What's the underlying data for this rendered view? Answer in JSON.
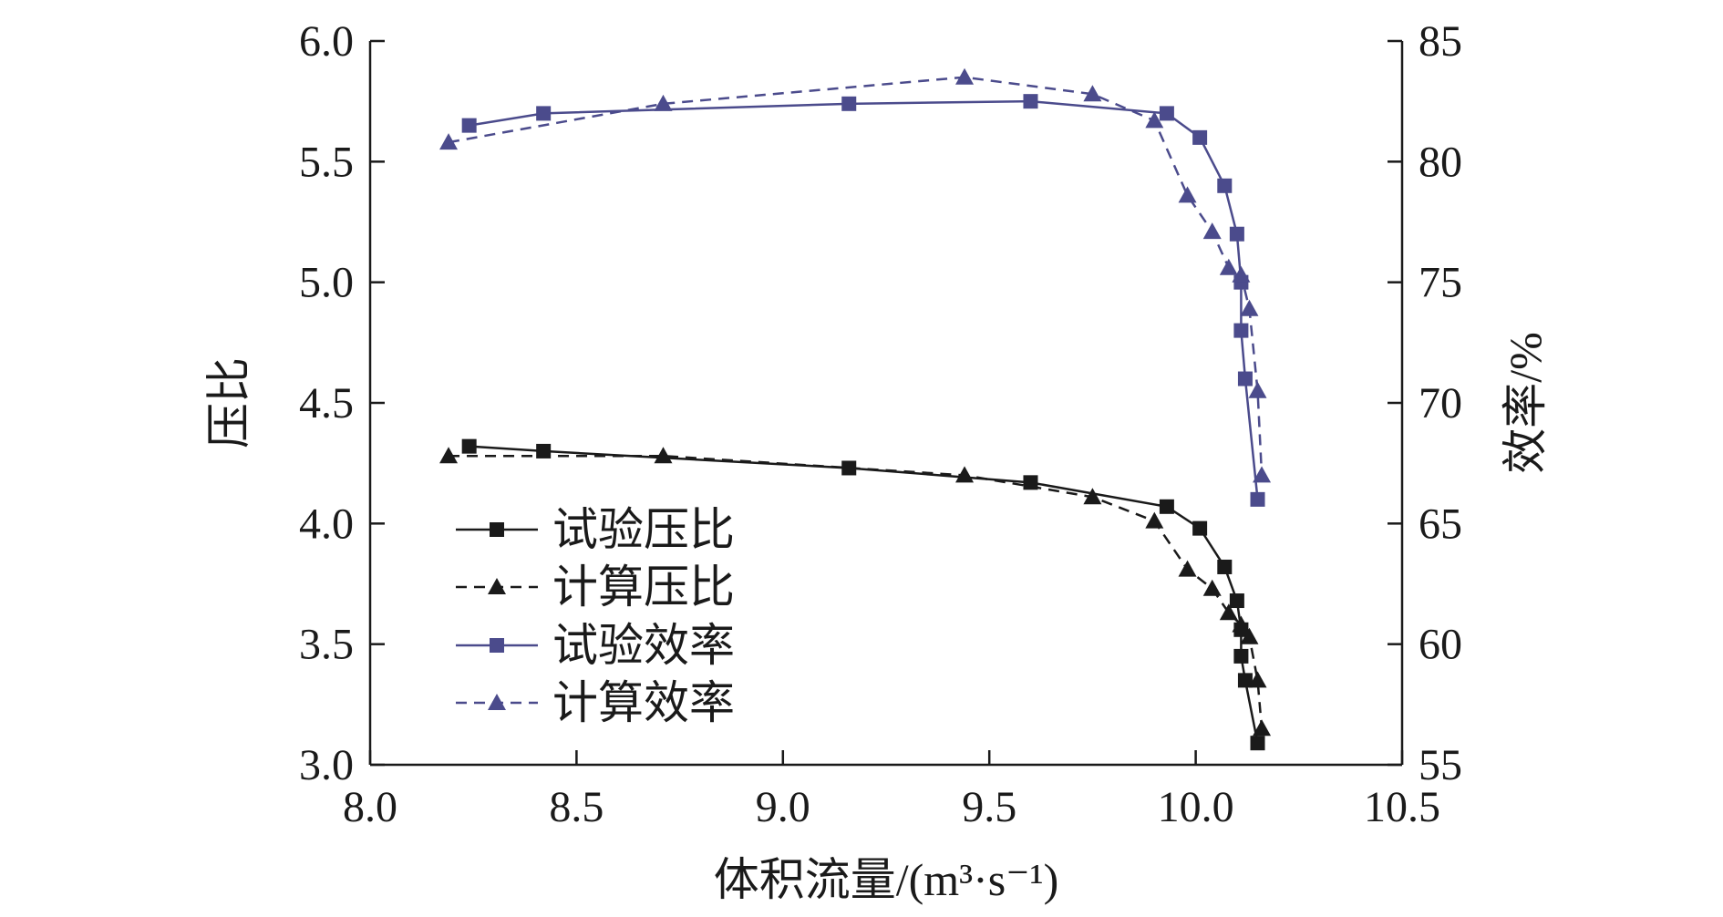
{
  "chart_data": {
    "type": "line",
    "xlabel": "体积流量/(m³·s⁻¹)",
    "ylabel_left": "压比",
    "ylabel_right": "效率/%",
    "xlim": [
      8.0,
      10.5
    ],
    "ylim_left": [
      3.0,
      6.0
    ],
    "ylim_right": [
      55,
      85
    ],
    "xticks": [
      "8.0",
      "8.5",
      "9.0",
      "9.5",
      "10.0",
      "10.5"
    ],
    "yticks_left": [
      "3.0",
      "3.5",
      "4.0",
      "4.5",
      "5.0",
      "5.5",
      "6.0"
    ],
    "yticks_right": [
      "55",
      "60",
      "65",
      "70",
      "75",
      "80",
      "85"
    ],
    "grid": false,
    "legend_position": "lower-left",
    "colors": {
      "pressure": "#1a1a1a",
      "efficiency": "#4b4b8c"
    },
    "series": [
      {
        "name": "试验压比",
        "axis": "left",
        "color": "#1a1a1a",
        "line": "solid",
        "marker": "square",
        "x": [
          8.24,
          8.42,
          9.16,
          9.6,
          9.93,
          10.01,
          10.07,
          10.1,
          10.11,
          10.11,
          10.12,
          10.15
        ],
        "y": [
          4.32,
          4.3,
          4.23,
          4.17,
          4.07,
          3.98,
          3.82,
          3.68,
          3.56,
          3.45,
          3.35,
          3.09
        ]
      },
      {
        "name": "计算压比",
        "axis": "left",
        "color": "#1a1a1a",
        "line": "dashed",
        "marker": "triangle",
        "x": [
          8.19,
          8.71,
          9.44,
          9.75,
          9.9,
          9.98,
          10.04,
          10.08,
          10.11,
          10.13,
          10.15,
          10.16
        ],
        "y": [
          4.28,
          4.28,
          4.2,
          4.11,
          4.01,
          3.81,
          3.73,
          3.63,
          3.58,
          3.53,
          3.35,
          3.15
        ]
      },
      {
        "name": "试验效率",
        "axis": "right",
        "color": "#4b4b8c",
        "line": "solid",
        "marker": "square",
        "x": [
          8.24,
          8.42,
          9.16,
          9.6,
          9.93,
          10.01,
          10.07,
          10.1,
          10.11,
          10.11,
          10.12,
          10.15
        ],
        "y": [
          81.5,
          82.0,
          82.4,
          82.5,
          82.0,
          81.0,
          79.0,
          77.0,
          75.0,
          73.0,
          71.0,
          66.0
        ]
      },
      {
        "name": "计算效率",
        "axis": "right",
        "color": "#4b4b8c",
        "line": "dashed",
        "marker": "triangle",
        "x": [
          8.19,
          8.71,
          9.44,
          9.75,
          9.9,
          9.98,
          10.04,
          10.08,
          10.11,
          10.13,
          10.15,
          10.16
        ],
        "y": [
          80.8,
          82.4,
          83.5,
          82.8,
          81.7,
          78.6,
          77.1,
          75.6,
          75.3,
          73.9,
          70.5,
          67.0
        ]
      }
    ]
  }
}
